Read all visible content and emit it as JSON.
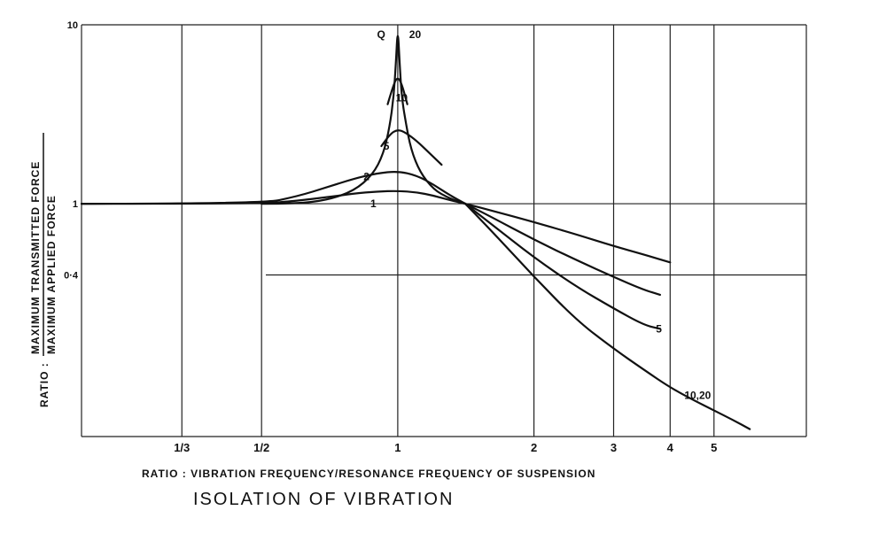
{
  "chart_data": {
    "type": "line",
    "title": "ISOLATION OF VIBRATION",
    "xlabel": "RATIO : VIBRATION FREQUENCY/RESONANCE FREQUENCY OF SUSPENSION",
    "ylabel": {
      "prefix": "RATIO :",
      "numerator": "MAXIMUM TRANSMITTED FORCE",
      "denominator": "MAXIMUM APPLIED FORCE"
    },
    "x_scale": "log",
    "y_scale": "log",
    "xlim": [
      0.2,
      8.0
    ],
    "ylim": [
      0.05,
      10
    ],
    "grid": true,
    "x_ticks": [
      {
        "value": 0.3333,
        "label": "1/3"
      },
      {
        "value": 0.5,
        "label": "1/2"
      },
      {
        "value": 1,
        "label": "1"
      },
      {
        "value": 2,
        "label": "2"
      },
      {
        "value": 3,
        "label": "3"
      },
      {
        "value": 4,
        "label": "4"
      },
      {
        "value": 5,
        "label": "5"
      }
    ],
    "y_ticks": [
      {
        "value": 10,
        "label": "10"
      },
      {
        "value": 1,
        "label": "1"
      },
      {
        "value": 0.4,
        "label": "0·4"
      }
    ],
    "q_label": "Q",
    "series": [
      {
        "name": "1",
        "label_x": 0.87,
        "label_y": 1.0,
        "x": [
          0.2,
          0.5,
          0.6,
          0.7,
          0.8,
          0.9,
          1.0,
          1.1,
          1.2,
          1.3,
          1.41,
          1.6,
          2.0,
          2.5,
          3.0,
          3.5,
          4.0
        ],
        "y": [
          1.0,
          1.0,
          1.04,
          1.09,
          1.14,
          1.17,
          1.18,
          1.16,
          1.11,
          1.05,
          1.0,
          0.92,
          0.79,
          0.67,
          0.58,
          0.52,
          0.47
        ]
      },
      {
        "name": "2",
        "label_x": 0.84,
        "label_y": 1.42,
        "x": [
          0.2,
          0.5,
          0.6,
          0.7,
          0.8,
          0.9,
          1.0,
          1.1,
          1.2,
          1.3,
          1.41,
          1.6,
          2.0,
          2.5,
          3.0,
          3.5,
          3.8
        ],
        "y": [
          1.0,
          1.0,
          1.1,
          1.24,
          1.38,
          1.48,
          1.52,
          1.44,
          1.28,
          1.12,
          1.0,
          0.85,
          0.63,
          0.48,
          0.39,
          0.33,
          0.31
        ]
      },
      {
        "name": "5",
        "label_x": 0.93,
        "label_y": 2.1,
        "x": [
          0.92,
          0.96,
          1.0,
          1.04,
          1.1,
          1.18,
          1.25
        ],
        "y": [
          2.1,
          2.45,
          2.6,
          2.5,
          2.25,
          1.9,
          1.65
        ]
      },
      {
        "name": "5",
        "label_x": 3.72,
        "label_y": 0.2,
        "x": [
          1.41,
          1.6,
          2.0,
          2.5,
          3.0,
          3.5,
          3.8
        ],
        "y": [
          1.0,
          0.78,
          0.5,
          0.34,
          0.26,
          0.21,
          0.2
        ]
      },
      {
        "name": "10",
        "label_x": 0.99,
        "label_y": 3.9,
        "x": [
          0.95,
          0.98,
          1.0,
          1.02,
          1.05
        ],
        "y": [
          3.6,
          4.7,
          5.1,
          4.7,
          3.6
        ]
      },
      {
        "name": "20",
        "label_x": 1.06,
        "label_y": 8.8,
        "x": [
          0.5,
          0.6,
          0.7,
          0.8,
          0.88,
          0.93,
          0.96,
          0.98,
          0.99,
          1.0,
          1.01,
          1.02,
          1.04,
          1.07,
          1.12,
          1.2,
          1.3,
          1.41
        ],
        "y": [
          1.0,
          1.0,
          1.05,
          1.18,
          1.45,
          1.9,
          2.7,
          4.0,
          6.0,
          9.8,
          6.0,
          4.0,
          2.9,
          2.0,
          1.5,
          1.2,
          1.07,
          1.0
        ]
      },
      {
        "name": "10,20",
        "label_x": 4.3,
        "label_y": 0.085,
        "x": [
          1.41,
          1.6,
          2.0,
          2.5,
          3.0,
          3.5,
          4.0,
          4.5,
          5.0,
          5.5,
          6.0
        ],
        "y": [
          1.0,
          0.72,
          0.39,
          0.22,
          0.155,
          0.118,
          0.094,
          0.08,
          0.07,
          0.062,
          0.055
        ]
      }
    ]
  }
}
